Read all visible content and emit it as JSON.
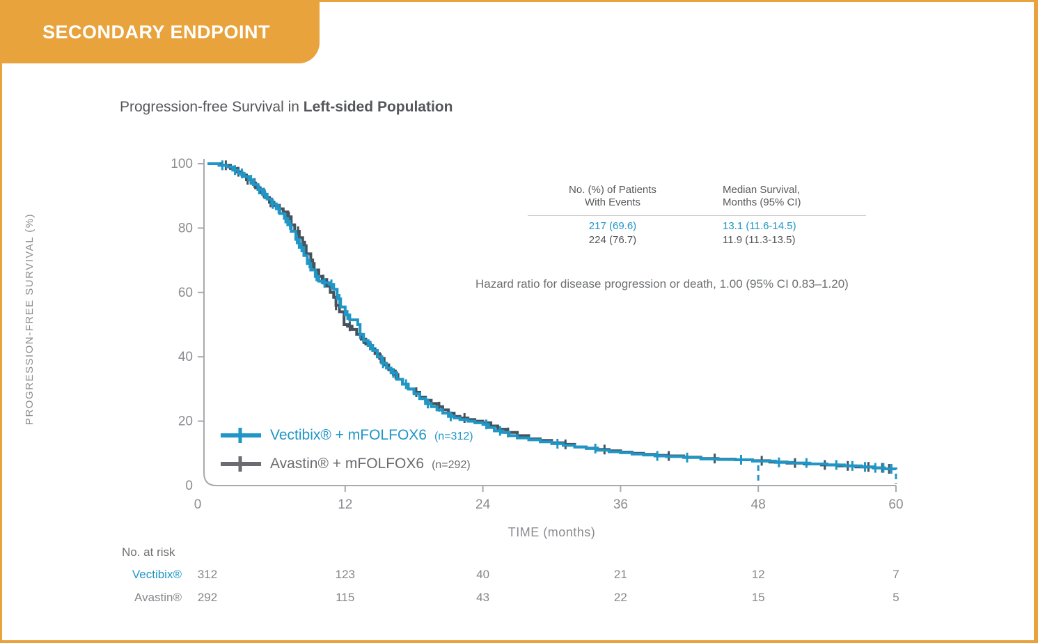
{
  "banner": {
    "label": "SECONDARY ENDPOINT",
    "color": "#E8A33C"
  },
  "title": {
    "prefix": "Progression-free Survival in ",
    "bold": "Left-sided Population"
  },
  "stats_table": {
    "col1_header": [
      "No. (%) of Patients",
      "With Events"
    ],
    "col2_header": [
      "Median Survival,",
      "Months (95% CI)"
    ],
    "rows": [
      {
        "arm": "Vectibix + mFOLFOX6",
        "events": "217 (69.6)",
        "median": "13.1 (11.6-14.5)",
        "color": "#1F96C6"
      },
      {
        "arm": "Avastin + mFOLFOX6",
        "events": "224 (76.7)",
        "median": "11.9 (11.3-13.5)",
        "color": "#54565A"
      }
    ]
  },
  "hazard_text": "Hazard ratio for disease progression or death, 1.00 (95% CI 0.83–1.20)",
  "legend": [
    {
      "label": "Vectibix® + mFOLFOX6",
      "n": "(n=312)",
      "color": "#1F96C6"
    },
    {
      "label": "Avastin® + mFOLFOX6",
      "n": "(n=292)",
      "color": "#6A6C70"
    }
  ],
  "chart_data": {
    "type": "line",
    "subtype": "kaplan-meier-step",
    "title": "Progression-free Survival in Left-sided Population",
    "xlabel": "TIME (months)",
    "ylabel": "PROGRESSION-FREE SURVIVAL (%)",
    "xlim": [
      0,
      60
    ],
    "ylim": [
      0,
      100
    ],
    "xticks": [
      0,
      12,
      24,
      36,
      48,
      60
    ],
    "yticks": [
      0,
      20,
      40,
      60,
      80,
      100
    ],
    "grid": false,
    "legend_position": "inside-lower-left",
    "axis_color": "#A7A9AC",
    "tick_label_color": "#8A8C8F",
    "reference_dashes_x": [
      48,
      60
    ],
    "series": [
      {
        "name": "Avastin + mFOLFOX6",
        "n": 292,
        "color": "#46525C",
        "median_months": 11.9,
        "median_ci": "11.3-13.5",
        "events": "224 (76.7)",
        "points": [
          [
            0,
            100
          ],
          [
            1.2,
            99.5
          ],
          [
            2,
            98.5
          ],
          [
            2.5,
            97.5
          ],
          [
            3,
            96.5
          ],
          [
            3.4,
            95
          ],
          [
            3.8,
            94
          ],
          [
            4.2,
            92.5
          ],
          [
            4.6,
            91
          ],
          [
            5,
            89.5
          ],
          [
            5.4,
            88
          ],
          [
            5.8,
            87
          ],
          [
            6.2,
            86
          ],
          [
            6.6,
            85
          ],
          [
            7,
            83.5
          ],
          [
            7.3,
            81
          ],
          [
            7.6,
            79
          ],
          [
            8,
            77
          ],
          [
            8.3,
            74.5
          ],
          [
            8.6,
            72
          ],
          [
            9,
            69
          ],
          [
            9.3,
            67
          ],
          [
            9.7,
            65
          ],
          [
            10,
            64
          ],
          [
            10.4,
            62
          ],
          [
            10.7,
            60
          ],
          [
            11,
            58.5
          ],
          [
            11.2,
            56
          ],
          [
            11.5,
            54
          ],
          [
            11.9,
            50
          ],
          [
            12.2,
            49.5
          ],
          [
            12.6,
            48.5
          ],
          [
            13,
            47
          ],
          [
            13.4,
            45.5
          ],
          [
            13.8,
            44
          ],
          [
            14.2,
            42.5
          ],
          [
            14.6,
            41
          ],
          [
            15,
            39.5
          ],
          [
            15.4,
            37.5
          ],
          [
            15.8,
            36
          ],
          [
            16.2,
            34.5
          ],
          [
            16.6,
            33
          ],
          [
            17,
            31.5
          ],
          [
            17.5,
            30
          ],
          [
            18,
            29
          ],
          [
            18.5,
            27.5
          ],
          [
            19,
            26.5
          ],
          [
            19.5,
            25.5
          ],
          [
            20,
            24.5
          ],
          [
            20.5,
            23.5
          ],
          [
            21,
            22.5
          ],
          [
            21.5,
            21.5
          ],
          [
            22,
            21
          ],
          [
            22.7,
            20.5
          ],
          [
            23.3,
            20
          ],
          [
            24,
            19.5
          ],
          [
            24.7,
            18.5
          ],
          [
            25.3,
            17.5
          ],
          [
            26,
            16.5
          ],
          [
            27,
            15.5
          ],
          [
            28,
            14.5
          ],
          [
            29,
            14
          ],
          [
            30,
            13.3
          ],
          [
            31,
            12.8
          ],
          [
            32,
            12
          ],
          [
            33,
            11.6
          ],
          [
            34,
            11.2
          ],
          [
            35,
            10.8
          ],
          [
            36,
            10.4
          ],
          [
            37,
            10
          ],
          [
            38,
            9.7
          ],
          [
            39,
            9.4
          ],
          [
            40,
            9.2
          ],
          [
            41.5,
            8.8
          ],
          [
            43,
            8.4
          ],
          [
            44.5,
            8.2
          ],
          [
            46,
            8
          ],
          [
            47.5,
            7.7
          ],
          [
            49,
            7.3
          ],
          [
            50.5,
            7
          ],
          [
            52,
            6.7
          ],
          [
            53.5,
            6.4
          ],
          [
            55,
            6.1
          ],
          [
            56.5,
            5.8
          ],
          [
            58,
            5.5
          ],
          [
            59,
            5.2
          ],
          [
            60,
            5
          ]
        ],
        "censor_times": [
          1.6,
          2.7,
          3.5,
          4.1,
          4.9,
          5.5,
          6.3,
          7.1,
          7.9,
          8.5,
          9.2,
          10.1,
          11.2,
          12.4,
          13.6,
          15.1,
          16.4,
          18.2,
          20.2,
          22.4,
          26.2,
          31.2,
          34.6,
          40.2,
          44.2,
          48.3,
          51.2,
          53.8,
          55.8,
          57.6,
          58.8,
          59.4
        ]
      },
      {
        "name": "Vectibix + mFOLFOX6",
        "n": 312,
        "color": "#1F96C6",
        "median_months": 13.1,
        "median_ci": "11.6-14.5",
        "events": "217 (69.6)",
        "points": [
          [
            0,
            100
          ],
          [
            1,
            99.5
          ],
          [
            1.7,
            99
          ],
          [
            2.2,
            98
          ],
          [
            2.7,
            97
          ],
          [
            3.2,
            96
          ],
          [
            3.6,
            95
          ],
          [
            4,
            93.5
          ],
          [
            4.4,
            92
          ],
          [
            4.8,
            90.5
          ],
          [
            5.2,
            89
          ],
          [
            5.6,
            87.5
          ],
          [
            6,
            86
          ],
          [
            6.3,
            84.5
          ],
          [
            6.7,
            83
          ],
          [
            7,
            81
          ],
          [
            7.3,
            79
          ],
          [
            7.7,
            76.5
          ],
          [
            8,
            74
          ],
          [
            8.4,
            71.5
          ],
          [
            8.7,
            69
          ],
          [
            9,
            67
          ],
          [
            9.4,
            65
          ],
          [
            9.7,
            63.5
          ],
          [
            10,
            63
          ],
          [
            10.6,
            62.5
          ],
          [
            11,
            61
          ],
          [
            11.3,
            58
          ],
          [
            11.6,
            55.5
          ],
          [
            12,
            53
          ],
          [
            12.4,
            51.5
          ],
          [
            13.1,
            50
          ],
          [
            13.3,
            47
          ],
          [
            13.6,
            45
          ],
          [
            14,
            43.5
          ],
          [
            14.4,
            42
          ],
          [
            14.8,
            40
          ],
          [
            15.2,
            38
          ],
          [
            15.6,
            36.5
          ],
          [
            16,
            35
          ],
          [
            16.5,
            33
          ],
          [
            17,
            31.5
          ],
          [
            17.5,
            30
          ],
          [
            18,
            28.5
          ],
          [
            18.5,
            27
          ],
          [
            19,
            25.5
          ],
          [
            19.5,
            24.5
          ],
          [
            20,
            23.5
          ],
          [
            20.5,
            22.5
          ],
          [
            21,
            21.5
          ],
          [
            21.5,
            21
          ],
          [
            22,
            20.5
          ],
          [
            22.7,
            20
          ],
          [
            23.3,
            19.5
          ],
          [
            24,
            19
          ],
          [
            24.5,
            18
          ],
          [
            25,
            17
          ],
          [
            25.7,
            16.5
          ],
          [
            26.3,
            15.5
          ],
          [
            27,
            14.8
          ],
          [
            28,
            14.2
          ],
          [
            29,
            13.6
          ],
          [
            30,
            13
          ],
          [
            31,
            12.5
          ],
          [
            32,
            12
          ],
          [
            33,
            11.5
          ],
          [
            34,
            11
          ],
          [
            35,
            10.5
          ],
          [
            36,
            10.2
          ],
          [
            37,
            9.8
          ],
          [
            38,
            9.5
          ],
          [
            39,
            9.2
          ],
          [
            40,
            9
          ],
          [
            41.5,
            8.7
          ],
          [
            43,
            8.3
          ],
          [
            44.5,
            8.1
          ],
          [
            46,
            8
          ],
          [
            47.5,
            7.6
          ],
          [
            49.5,
            7.2
          ],
          [
            51,
            7
          ],
          [
            52.5,
            6.7
          ],
          [
            54,
            6.4
          ],
          [
            55.5,
            6.1
          ],
          [
            57,
            5.8
          ],
          [
            58,
            5.5
          ],
          [
            59,
            5.2
          ],
          [
            60,
            5
          ]
        ],
        "censor_times": [
          1.3,
          2.4,
          3,
          3.8,
          4.5,
          5,
          5.7,
          6.2,
          6.8,
          7.2,
          7.8,
          8.2,
          8.9,
          9.5,
          10.2,
          10.8,
          11.5,
          12.2,
          13.3,
          14.2,
          15.3,
          16.2,
          17.3,
          19.2,
          21.2,
          24.3,
          25.5,
          30.5,
          33.8,
          39.2,
          41.8,
          46.5,
          49.8,
          52.2,
          54.8,
          56.2,
          57.3,
          58.2,
          58.9,
          59.6
        ]
      }
    ],
    "at_risk": {
      "label": "No. at risk",
      "times": [
        0,
        12,
        24,
        36,
        48,
        60
      ],
      "rows": [
        {
          "name": "Vectibix®",
          "color": "#1F96C6",
          "values": [
            312,
            123,
            40,
            21,
            12,
            7
          ]
        },
        {
          "name": "Avastin®",
          "color": "#85878A",
          "values": [
            292,
            115,
            43,
            22,
            15,
            5
          ]
        }
      ]
    }
  }
}
